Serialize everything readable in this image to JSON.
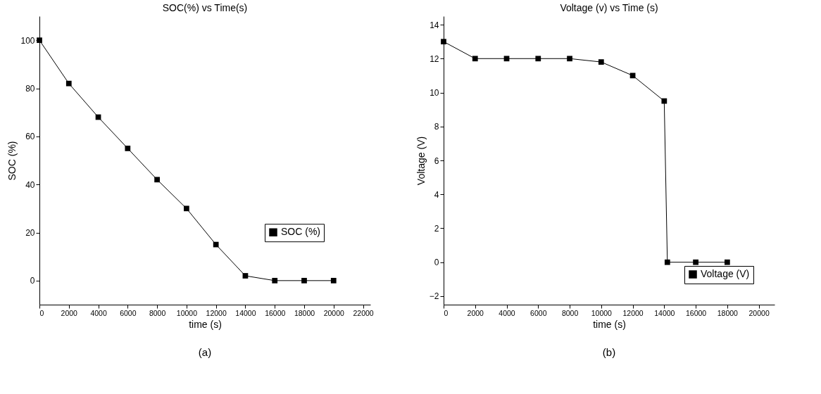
{
  "chart_data": [
    {
      "type": "line",
      "title": "SOC(%) vs Time(s)",
      "xlabel": "time (s)",
      "ylabel": "SOC (%)",
      "annotations": [
        "(a)"
      ],
      "x": [
        0,
        2000,
        4000,
        6000,
        8000,
        10000,
        12000,
        14000,
        16000,
        18000,
        20000
      ],
      "series": [
        {
          "name": "SOC (%)",
          "color": "#000000",
          "values": [
            100,
            82,
            68,
            55,
            42,
            30,
            15,
            2,
            0,
            0,
            0
          ]
        }
      ],
      "xlim": [
        0,
        22500
      ],
      "xticks": [
        0,
        2000,
        4000,
        6000,
        8000,
        10000,
        12000,
        14000,
        16000,
        18000,
        20000,
        22000
      ],
      "ylim": [
        -10,
        110
      ],
      "yticks": [
        0,
        20,
        40,
        60,
        80,
        100
      ],
      "grid": false,
      "legend": "right",
      "marker": "square",
      "line_style": "solid"
    },
    {
      "type": "line",
      "title": "Voltage (v) vs Time (s)",
      "xlabel": "time (s)",
      "ylabel": "Voltage (V)",
      "annotations": [
        "(b)"
      ],
      "x": [
        0,
        2000,
        4000,
        6000,
        8000,
        10000,
        12000,
        14000,
        14200,
        16000,
        18000
      ],
      "series": [
        {
          "name": "Voltage (V)",
          "color": "#000000",
          "values": [
            13,
            12,
            12,
            12,
            12,
            11.8,
            11,
            9.5,
            0,
            0,
            0
          ]
        }
      ],
      "xlim": [
        0,
        21000
      ],
      "xticks": [
        0,
        2000,
        4000,
        6000,
        8000,
        10000,
        12000,
        14000,
        16000,
        18000,
        20000
      ],
      "ylim": [
        -2.5,
        14.5
      ],
      "yticks": [
        -2,
        0,
        2,
        4,
        6,
        8,
        10,
        12,
        14
      ],
      "grid": false,
      "legend": "bottom right",
      "marker": "square",
      "line_style": "solid"
    }
  ]
}
